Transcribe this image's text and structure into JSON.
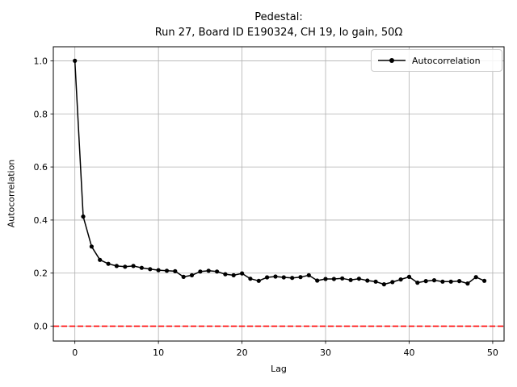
{
  "figure": {
    "background": "#ffffff"
  },
  "chart_data": {
    "type": "line",
    "title": "Pedestal:\nRun 27, Board ID E190324, CH 19, lo gain, 50Ω",
    "title_lines": [
      "Pedestal:",
      "Run 27, Board ID E190324, CH 19, lo gain, 50Ω"
    ],
    "xlabel": "Lag",
    "ylabel": "Autocorrelation",
    "legend": {
      "entries": [
        "Autocorrelation"
      ],
      "position": "upper right"
    },
    "grid": true,
    "x_ticks": [
      0,
      10,
      20,
      30,
      40,
      50
    ],
    "x_tick_labels": [
      "0",
      "10",
      "20",
      "30",
      "40",
      "50"
    ],
    "y_ticks": [
      0.0,
      0.2,
      0.4,
      0.6,
      0.8,
      1.0
    ],
    "y_tick_labels": [
      "0.0",
      "0.2",
      "0.4",
      "0.6",
      "0.8",
      "1.0"
    ],
    "xlim": [
      -2.58,
      51.36
    ],
    "ylim": [
      -0.056,
      1.053
    ],
    "zero_line": {
      "y": 0.0,
      "color": "#ff0000",
      "style": "dashed"
    },
    "series": [
      {
        "name": "Autocorrelation",
        "color": "#000000",
        "marker": "point",
        "x": [
          0,
          1,
          2,
          3,
          4,
          5,
          6,
          7,
          8,
          9,
          10,
          11,
          12,
          13,
          14,
          15,
          16,
          17,
          18,
          19,
          20,
          21,
          22,
          23,
          24,
          25,
          26,
          27,
          28,
          29,
          30,
          31,
          32,
          33,
          34,
          35,
          36,
          37,
          38,
          39,
          40,
          41,
          42,
          43,
          44,
          45,
          46,
          47,
          48,
          49
        ],
        "values": [
          1.0,
          0.413,
          0.3,
          0.25,
          0.235,
          0.227,
          0.224,
          0.227,
          0.22,
          0.215,
          0.211,
          0.209,
          0.207,
          0.186,
          0.192,
          0.206,
          0.209,
          0.206,
          0.196,
          0.192,
          0.199,
          0.179,
          0.171,
          0.184,
          0.187,
          0.184,
          0.182,
          0.185,
          0.192,
          0.172,
          0.178,
          0.178,
          0.18,
          0.174,
          0.179,
          0.172,
          0.168,
          0.158,
          0.166,
          0.176,
          0.186,
          0.164,
          0.17,
          0.173,
          0.168,
          0.168,
          0.17,
          0.161,
          0.185,
          0.171
        ]
      }
    ]
  },
  "colors": {
    "grid": "#b0b0b0",
    "spine": "#000000",
    "series": "#000000",
    "zero_line": "#ff0000",
    "legend_edge": "#cccccc",
    "background": "#ffffff"
  }
}
